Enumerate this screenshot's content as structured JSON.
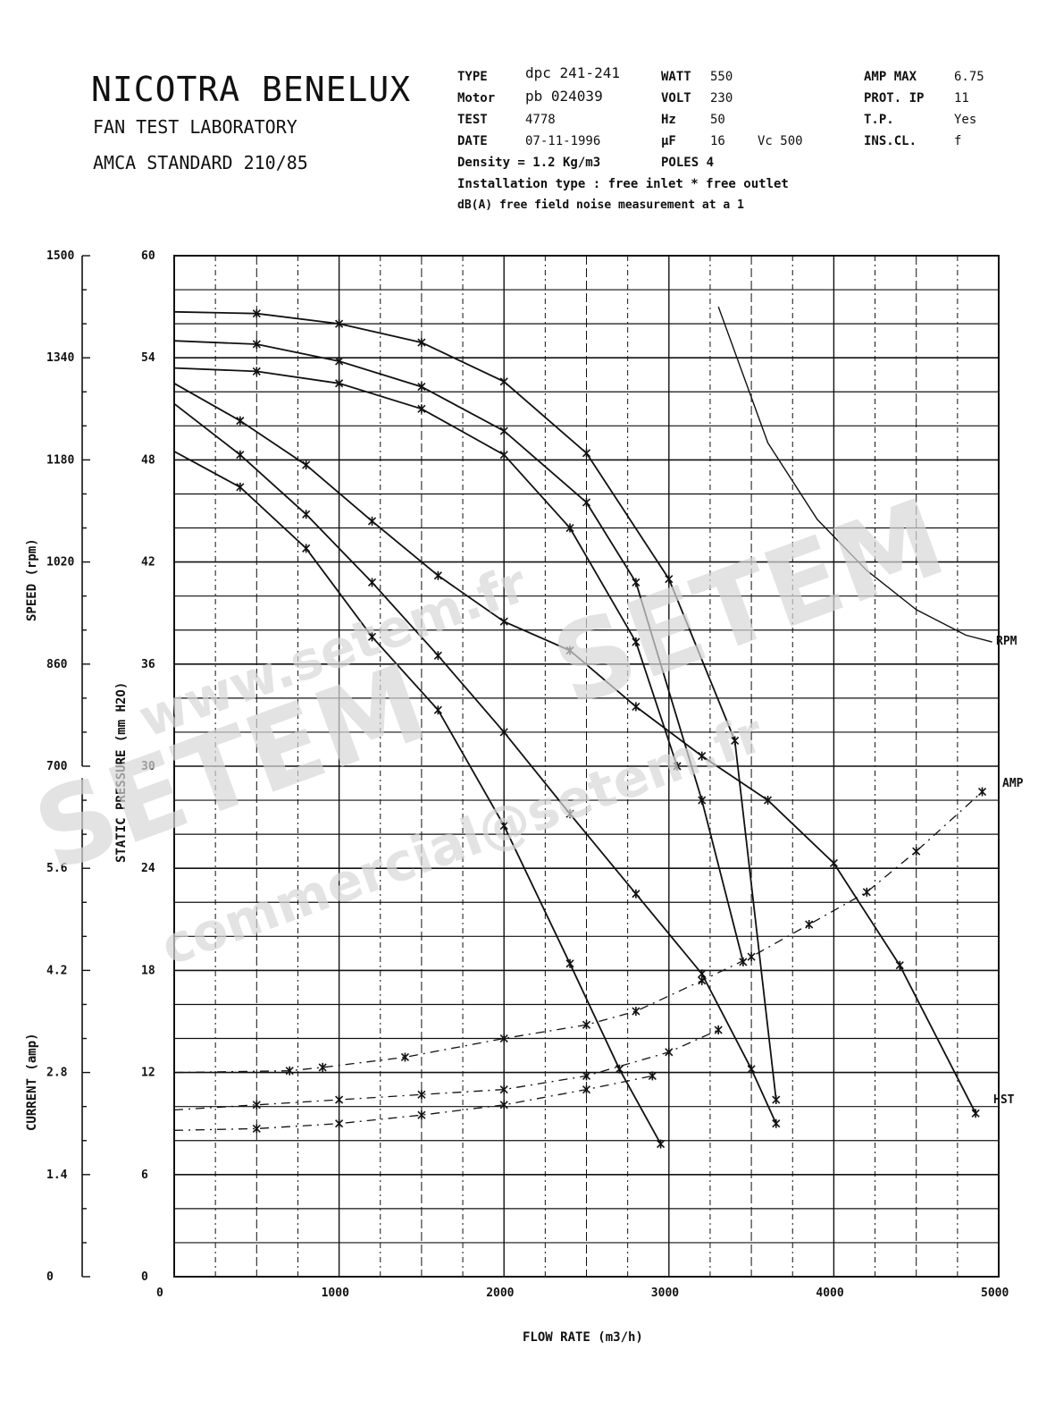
{
  "header": {
    "company": "NICOTRA BENELUX",
    "lab": "FAN TEST LABORATORY",
    "standard": "AMCA STANDARD 210/85"
  },
  "specs": {
    "type_label": "TYPE",
    "type_value": "dpc 241-241",
    "motor_label": "Motor",
    "motor_value": "pb 024039",
    "test_label": "TEST",
    "test_value": "4778",
    "date_label": "DATE",
    "date_value": "07-11-1996",
    "density": "Density = 1.2  Kg/m3",
    "install": "Installation type :  free inlet * free outlet",
    "noise": "dB(A)  free field noise measurement at a  1",
    "watt_label": "WATT",
    "watt_value": "550",
    "volt_label": "VOLT",
    "volt_value": "230",
    "hz_label": "Hz",
    "hz_value": "50",
    "uf_label": "μF",
    "uf_value": "16",
    "vc_label": "Vc 500",
    "poles": "POLES 4",
    "ampmax_label": "AMP MAX",
    "ampmax_value": "6.75",
    "prot_label": "PROT.  IP",
    "prot_value": "11",
    "tp_label": "T.P.",
    "tp_value": "Yes",
    "inscl_label": "INS.CL.",
    "inscl_value": "f"
  },
  "watermark": {
    "site": "www.setem.fr",
    "brand": "SETEM",
    "email": "commercial@setem.fr"
  },
  "chart_data": {
    "type": "line",
    "xlabel": "FLOW RATE  (m3/h)",
    "xlim": [
      0,
      5000
    ],
    "x_ticks": [
      "0",
      "1000",
      "2000",
      "3000",
      "4000",
      "5000"
    ],
    "ylabel_pressure": "STATIC PRESSURE   (mm H2O)",
    "ylim_pressure": [
      0,
      60
    ],
    "pressure_ticks": [
      "0",
      "6",
      "12",
      "18",
      "24",
      "30",
      "36",
      "42",
      "48",
      "54",
      "60"
    ],
    "ylabel_speed": "SPEED  (rpm)",
    "speed_range": [
      700,
      1500
    ],
    "speed_ticks": [
      "700",
      "860",
      "1020",
      "1180",
      "1340",
      "1500"
    ],
    "ylabel_current": "CURRENT  (amp)",
    "current_range": [
      0,
      7
    ],
    "current_ticks": [
      "0",
      "1.4",
      "2.8",
      "4.2",
      "5.6"
    ],
    "grid": true,
    "curve_labels": {
      "rpm": "RPM",
      "amp": "AMP",
      "pressure": "HST"
    },
    "static_pressure_series": [
      {
        "x": [
          0,
          500,
          1000,
          1500,
          2000,
          2500,
          3000,
          3400,
          3650
        ],
        "values": [
          56.7,
          56.6,
          56.0,
          54.9,
          52.6,
          48.4,
          41.0,
          31.5,
          10.4
        ]
      },
      {
        "x": [
          0,
          500,
          1000,
          1500,
          2000,
          2500,
          2800,
          3200,
          3450
        ],
        "values": [
          55.0,
          54.8,
          53.8,
          52.3,
          49.7,
          45.5,
          40.8,
          28.0,
          18.5
        ]
      },
      {
        "x": [
          0,
          500,
          1000,
          1500,
          2000,
          2400,
          2800,
          3050
        ],
        "values": [
          53.4,
          53.2,
          52.5,
          51.0,
          48.3,
          44.0,
          37.3,
          30.0
        ]
      },
      {
        "x": [
          0,
          400,
          800,
          1200,
          1600,
          2000,
          2400,
          2800,
          3200,
          3600,
          4000,
          4400,
          4860
        ],
        "values": [
          52.5,
          50.3,
          47.7,
          44.4,
          41.2,
          38.5,
          36.8,
          33.5,
          30.6,
          28.0,
          24.3,
          18.3,
          9.6
        ]
      },
      {
        "x": [
          0,
          400,
          800,
          1200,
          1600,
          2000,
          2400,
          2800,
          3200,
          3500,
          3650
        ],
        "values": [
          51.3,
          48.3,
          44.8,
          40.8,
          36.5,
          32.0,
          27.2,
          22.5,
          17.8,
          12.2,
          9.0
        ]
      },
      {
        "x": [
          0,
          400,
          800,
          1200,
          1600,
          2000,
          2400,
          2700,
          2950
        ],
        "values": [
          48.5,
          46.4,
          42.8,
          37.6,
          33.3,
          26.5,
          18.4,
          12.2,
          7.8
        ]
      }
    ],
    "rpm_curve": {
      "x": [
        3300,
        3600,
        3900,
        4200,
        4500,
        4800,
        4960
      ],
      "values": [
        57.0,
        49.0,
        44.5,
        41.5,
        39.2,
        37.7,
        37.3
      ]
    },
    "current_series": [
      {
        "x": [
          0,
          700,
          900,
          1400,
          2000,
          2500,
          2800,
          3200,
          3500,
          3850,
          4200,
          4500,
          4900
        ],
        "values": [
          12.0,
          12.1,
          12.3,
          12.9,
          14.0,
          14.8,
          15.6,
          17.4,
          18.8,
          20.7,
          22.6,
          25.0,
          28.5
        ]
      },
      {
        "x": [
          0,
          500,
          1000,
          1500,
          2000,
          2500,
          3000,
          3300
        ],
        "values": [
          9.8,
          10.1,
          10.4,
          10.7,
          11.0,
          11.8,
          13.2,
          14.5
        ]
      },
      {
        "x": [
          0,
          500,
          1000,
          1500,
          2000,
          2500,
          2900
        ],
        "values": [
          8.6,
          8.7,
          9.0,
          9.5,
          10.1,
          11.0,
          11.8
        ]
      }
    ]
  }
}
